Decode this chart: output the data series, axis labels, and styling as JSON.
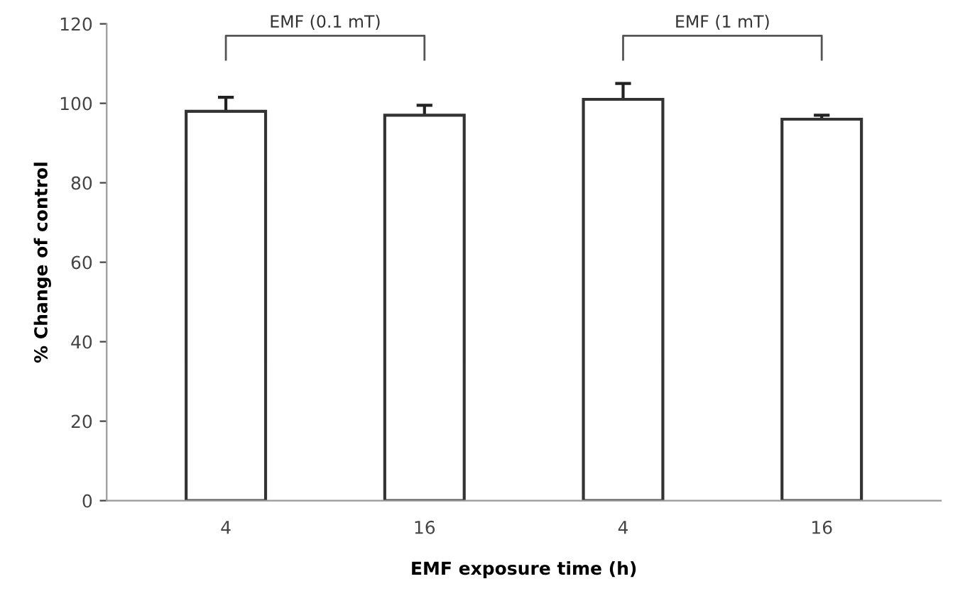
{
  "chart_data": {
    "type": "bar",
    "xlabel": "EMF exposure time (h)",
    "ylabel": "% Change of control",
    "categories": [
      "4",
      "16",
      "4",
      "16"
    ],
    "values": [
      98,
      97,
      101,
      96
    ],
    "errors": [
      3.5,
      2.5,
      4,
      1
    ],
    "color": "#ffffff",
    "ylim": [
      0,
      120
    ],
    "yticks": [
      0,
      20,
      40,
      60,
      80,
      100,
      120
    ],
    "annotations": [
      "EMF (0.1 mT)",
      "EMF (1 mT)"
    ],
    "grid": false
  }
}
